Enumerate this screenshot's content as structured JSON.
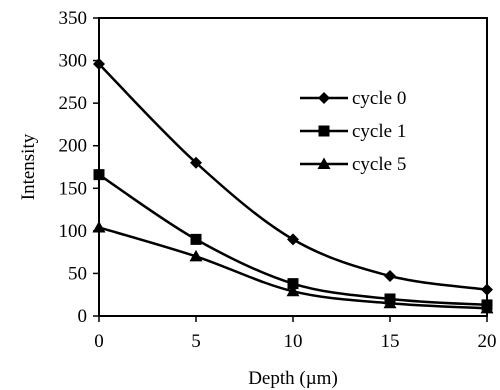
{
  "chart_data": {
    "type": "line",
    "xlabel": "Depth (µm)",
    "ylabel": "Intensity",
    "x": [
      0,
      5,
      10,
      15,
      20
    ],
    "xlim": [
      0,
      20
    ],
    "ylim": [
      0,
      350
    ],
    "xticks": [
      "0",
      "5",
      "10",
      "15",
      "20"
    ],
    "yticks": [
      "0",
      "50",
      "100",
      "150",
      "200",
      "250",
      "300",
      "350"
    ],
    "grid": false,
    "legend_position": "right",
    "series": [
      {
        "name": "cycle 0",
        "marker": "diamond",
        "values": [
          296,
          180,
          90,
          47,
          31
        ]
      },
      {
        "name": "cycle 1",
        "marker": "square",
        "values": [
          166,
          90,
          38,
          20,
          13
        ]
      },
      {
        "name": "cycle 5",
        "marker": "triangle",
        "values": [
          104,
          70,
          29,
          15,
          9
        ]
      }
    ],
    "line_color": "#000000"
  }
}
